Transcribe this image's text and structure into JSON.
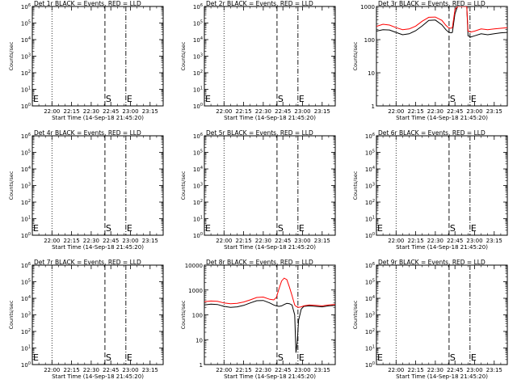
{
  "figure": {
    "background": "#ffffff"
  },
  "colors": {
    "events": "#000000",
    "lld": "#ff0000",
    "axes": "#000000"
  },
  "x_axis": {
    "start_time_label": "Start Time (14-Sep-18 21:45:20)",
    "tick_labels": [
      "22:00",
      "22:15",
      "22:30",
      "22:45",
      "23:00",
      "23:15"
    ],
    "tick_minutes_after_2145": [
      15,
      30,
      45,
      60,
      75,
      90
    ],
    "range_minutes_after_2145": [
      0,
      100
    ]
  },
  "ylabel": "Counts/sec",
  "markers": [
    {
      "label": "S",
      "style": "dashed",
      "minute": 55.5
    },
    {
      "label": "E",
      "style": "dash-dot",
      "minute": 71.5
    }
  ],
  "dotted_line_minute": 15,
  "chart_data": [
    {
      "type": "line",
      "title": "Det 1r BLACK = Events, RED = LLD",
      "xlabel": "Start Time (14-Sep-18 21:45:20)",
      "ylabel": "Counts/sec",
      "yscale": "log",
      "ylim": [
        1,
        1000000
      ],
      "y_tick_labels": [
        "10^0",
        "10^1",
        "10^2",
        "10^3",
        "10^4",
        "10^5",
        "10^6"
      ],
      "series": [],
      "marker_labels": {
        "S": "S",
        "E": "E",
        "left": "E"
      }
    },
    {
      "type": "line",
      "title": "Det 2r BLACK = Events, RED = LLD",
      "xlabel": "Start Time (14-Sep-18 21:45:20)",
      "ylabel": "Counts/sec",
      "yscale": "log",
      "ylim": [
        1,
        1000000
      ],
      "y_tick_labels": [
        "10^0",
        "10^1",
        "10^2",
        "10^3",
        "10^4",
        "10^5",
        "10^6"
      ],
      "series": [],
      "marker_labels": {
        "S": "S",
        "E": "E",
        "left": "E"
      }
    },
    {
      "type": "line",
      "title": "Det 3r BLACK = Events, RED = LLD",
      "xlabel": "Start Time (14-Sep-18 21:45:20)",
      "ylabel": "Counts/sec",
      "yscale": "log",
      "ylim": [
        1,
        1000
      ],
      "y_tick_labels": [
        "1",
        "10",
        "100",
        "1000"
      ],
      "series": [
        {
          "color": "#000000",
          "x": [
            0,
            5,
            10,
            15,
            20,
            25,
            30,
            35,
            40,
            45,
            50,
            53,
            55,
            57,
            58,
            60,
            62,
            65,
            67,
            69,
            70,
            72,
            75,
            80,
            85,
            90,
            95,
            100
          ],
          "y": [
            180,
            200,
            195,
            165,
            140,
            150,
            185,
            260,
            380,
            390,
            280,
            200,
            170,
            160,
            165,
            600,
            1000,
            1000,
            1000,
            1000,
            130,
            120,
            130,
            150,
            140,
            150,
            160,
            165
          ]
        },
        {
          "color": "#ff0000",
          "x": [
            0,
            5,
            10,
            15,
            20,
            25,
            30,
            35,
            40,
            45,
            50,
            53,
            55,
            57,
            58,
            60,
            62,
            65,
            67,
            69,
            70,
            72,
            75,
            80,
            85,
            90,
            95,
            100
          ],
          "y": [
            250,
            290,
            275,
            230,
            200,
            210,
            255,
            360,
            470,
            480,
            380,
            270,
            230,
            220,
            230,
            800,
            1000,
            1000,
            1000,
            1000,
            180,
            170,
            180,
            210,
            200,
            210,
            220,
            230
          ]
        }
      ],
      "marker_labels": {
        "S": "S",
        "E": "E",
        "left": ""
      }
    },
    {
      "type": "line",
      "title": "Det 4r BLACK = Events, RED = LLD",
      "xlabel": "Start Time (14-Sep-18 21:45:20)",
      "ylabel": "Counts/sec",
      "yscale": "log",
      "ylim": [
        1,
        1000000
      ],
      "y_tick_labels": [
        "10^0",
        "10^1",
        "10^2",
        "10^3",
        "10^4",
        "10^5",
        "10^6"
      ],
      "series": [],
      "marker_labels": {
        "S": "S",
        "E": "E",
        "left": "E"
      }
    },
    {
      "type": "line",
      "title": "Det 5r BLACK = Events, RED = LLD",
      "xlabel": "Start Time (14-Sep-18 21:45:20)",
      "ylabel": "Counts/sec",
      "yscale": "log",
      "ylim": [
        1,
        1000000
      ],
      "y_tick_labels": [
        "10^0",
        "10^1",
        "10^2",
        "10^3",
        "10^4",
        "10^5",
        "10^6"
      ],
      "series": [],
      "marker_labels": {
        "S": "S",
        "E": "E",
        "left": "E"
      }
    },
    {
      "type": "line",
      "title": "Det 6r BLACK = Events, RED = LLD",
      "xlabel": "Start Time (14-Sep-18 21:45:20)",
      "ylabel": "Counts/sec",
      "yscale": "log",
      "ylim": [
        1,
        1000000
      ],
      "y_tick_labels": [
        "10^0",
        "10^1",
        "10^2",
        "10^3",
        "10^4",
        "10^5",
        "10^6"
      ],
      "series": [],
      "marker_labels": {
        "S": "S",
        "E": "E",
        "left": "E"
      }
    },
    {
      "type": "line",
      "title": "Det 7r BLACK = Events, RED = LLD",
      "xlabel": "Start Time (14-Sep-18 21:45:20)",
      "ylabel": "Counts/sec",
      "yscale": "log",
      "ylim": [
        1,
        1000000
      ],
      "y_tick_labels": [
        "10^0",
        "10^1",
        "10^2",
        "10^3",
        "10^4",
        "10^5",
        "10^6"
      ],
      "series": [],
      "marker_labels": {
        "S": "S",
        "E": "E",
        "left": "E"
      }
    },
    {
      "type": "line",
      "title": "Det 8r BLACK = Events, RED = LLD",
      "xlabel": "Start Time (14-Sep-18 21:45:20)",
      "ylabel": "Counts/sec",
      "yscale": "log",
      "ylim": [
        1,
        10000
      ],
      "y_tick_labels": [
        "1",
        "10",
        "100",
        "1000",
        "10000"
      ],
      "series": [
        {
          "color": "#000000",
          "x": [
            0,
            5,
            10,
            15,
            20,
            25,
            30,
            35,
            40,
            45,
            50,
            53,
            55,
            57,
            59,
            61,
            63,
            65,
            67,
            69,
            70,
            71,
            72,
            74,
            76,
            80,
            85,
            90,
            95,
            100
          ],
          "y": [
            250,
            270,
            260,
            220,
            200,
            210,
            240,
            300,
            370,
            380,
            300,
            250,
            230,
            220,
            230,
            260,
            290,
            280,
            250,
            100,
            3,
            8,
            60,
            170,
            220,
            230,
            220,
            210,
            230,
            240
          ]
        },
        {
          "color": "#ff0000",
          "x": [
            0,
            5,
            10,
            15,
            20,
            25,
            30,
            35,
            40,
            45,
            50,
            53,
            55,
            57,
            59,
            61,
            63,
            65,
            67,
            69,
            70,
            71,
            72,
            74,
            76,
            80,
            85,
            90,
            95,
            100
          ],
          "y": [
            340,
            360,
            350,
            300,
            280,
            290,
            330,
            400,
            500,
            520,
            420,
            400,
            500,
            1100,
            2300,
            3000,
            2600,
            1300,
            600,
            250,
            220,
            210,
            200,
            210,
            230,
            250,
            240,
            230,
            250,
            260
          ]
        }
      ],
      "marker_labels": {
        "S": "S",
        "E": "E",
        "left": ""
      }
    },
    {
      "type": "line",
      "title": "Det 9r BLACK = Events, RED = LLD",
      "xlabel": "Start Time (14-Sep-18 21:45:20)",
      "ylabel": "Counts/sec",
      "yscale": "log",
      "ylim": [
        1,
        1000000
      ],
      "y_tick_labels": [
        "10^0",
        "10^1",
        "10^2",
        "10^3",
        "10^4",
        "10^5",
        "10^6"
      ],
      "series": [],
      "marker_labels": {
        "S": "S",
        "E": "E",
        "left": "E"
      }
    }
  ]
}
